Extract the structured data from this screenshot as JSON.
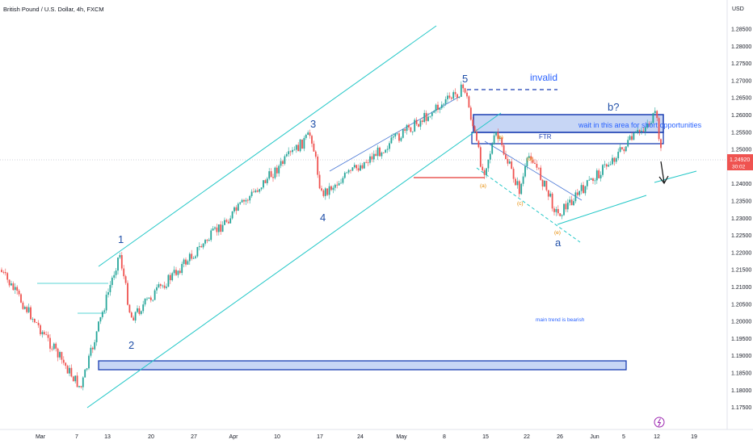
{
  "header": {
    "symbol_title": "British Pound / U.S. Dollar, 4h, FXCM",
    "currency": "USD"
  },
  "price_badge": {
    "price": "1.24920",
    "countdown": "30:02"
  },
  "price_axis": {
    "labels": [
      "1.28500",
      "1.28000",
      "1.27500",
      "1.27000",
      "1.26500",
      "1.26000",
      "1.25500",
      "1.25000",
      "1.24500",
      "1.24000",
      "1.23500",
      "1.23000",
      "1.22500",
      "1.22000",
      "1.21500",
      "1.21000",
      "1.20500",
      "1.20000",
      "1.19500",
      "1.19000",
      "1.18500",
      "1.18000",
      "1.17500"
    ],
    "min": 1.175,
    "max": 1.285
  },
  "time_axis": {
    "labels": [
      "Mar",
      "7",
      "13",
      "20",
      "27",
      "Apr",
      "10",
      "17",
      "24",
      "May",
      "8",
      "15",
      "22",
      "26",
      "Jun",
      "5",
      "12",
      "19"
    ]
  },
  "colors": {
    "up_candle": "#26a69a",
    "down_candle": "#ef5350",
    "channel": "#22c7c7",
    "wave_blue": "#1f4fa8",
    "zone_stroke": "#1b3fb2",
    "zone_fill": "#c7d6f5",
    "support_red": "#e53935",
    "small_wave_orange": "#e68a00",
    "price_badge": "#ef5350"
  },
  "annotations": {
    "waves": [
      "1",
      "2",
      "3",
      "4",
      "5",
      "a",
      "b?"
    ],
    "sub_waves": [
      "(a)",
      "(b)",
      "(c)",
      "(d)",
      "(e)"
    ],
    "invalid": "invalid",
    "ftr": "FTR",
    "wait_note": "wait in this area for short opportunities",
    "trend_note": "main trend is bearish"
  },
  "icons": {
    "event": "lightning-icon",
    "arrow": "down-arrow-icon"
  },
  "chart_data": {
    "type": "candlestick",
    "title": "British Pound / U.S. Dollar, 4h, FXCM",
    "timeframe": "4h",
    "y_unit": "USD",
    "ylim": [
      1.175,
      1.2875
    ],
    "last_price": 1.2492,
    "grid": false,
    "swing_points": [
      {
        "label": "start",
        "date": "Mar 1",
        "price": 1.215
      },
      {
        "label": "low",
        "date": "Mar 8",
        "price": 1.1805
      },
      {
        "label": "1",
        "date": "Mar 14",
        "price": 1.22
      },
      {
        "label": "2",
        "date": "Mar 15",
        "price": 1.201
      },
      {
        "label": "3",
        "date": "Apr 14",
        "price": 1.2545
      },
      {
        "label": "4",
        "date": "Apr 17",
        "price": 1.237
      },
      {
        "label": "5",
        "date": "May 10",
        "price": 1.268
      },
      {
        "label": "(a)",
        "date": "May 15",
        "price": 1.243
      },
      {
        "label": "(b)",
        "date": "May 16",
        "price": 1.2545
      },
      {
        "label": "(c)",
        "date": "May 22",
        "price": 1.238
      },
      {
        "label": "(d)",
        "date": "May 23",
        "price": 1.249
      },
      {
        "label": "(e)/a",
        "date": "May 25",
        "price": 1.231
      },
      {
        "label": "b?",
        "date": "Jun 12",
        "price": 1.26
      },
      {
        "label": "last",
        "date": "Jun 12",
        "price": 1.2492
      }
    ],
    "levels": {
      "invalid": 1.268,
      "short_zone": [
        1.256,
        1.2615
      ],
      "ftr": 1.2545,
      "support_zone": [
        1.191,
        1.1935
      ],
      "support_red": 1.243
    }
  }
}
